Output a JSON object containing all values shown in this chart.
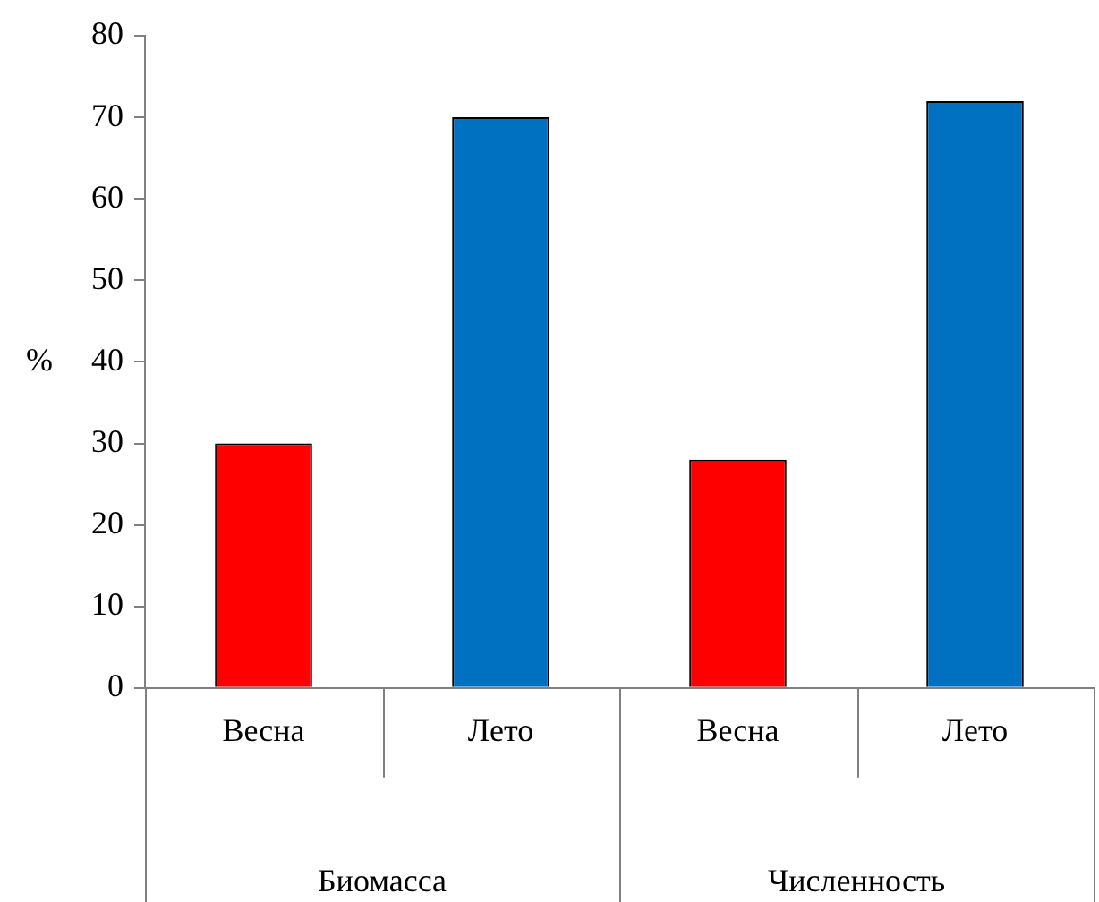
{
  "chart_data": {
    "type": "bar",
    "ylabel": "%",
    "categories": [
      "Весна",
      "Лето",
      "Весна",
      "Лето"
    ],
    "values": [
      30,
      70,
      28,
      72
    ],
    "colors": [
      "#ff0000",
      "#0070c0",
      "#ff0000",
      "#0070c0"
    ],
    "ylim": [
      0,
      80
    ],
    "yticks": [
      0,
      10,
      20,
      30,
      40,
      50,
      60,
      70,
      80
    ],
    "annotations": [
      "Биомасса",
      "Численность"
    ],
    "grid": false,
    "legend": false
  }
}
